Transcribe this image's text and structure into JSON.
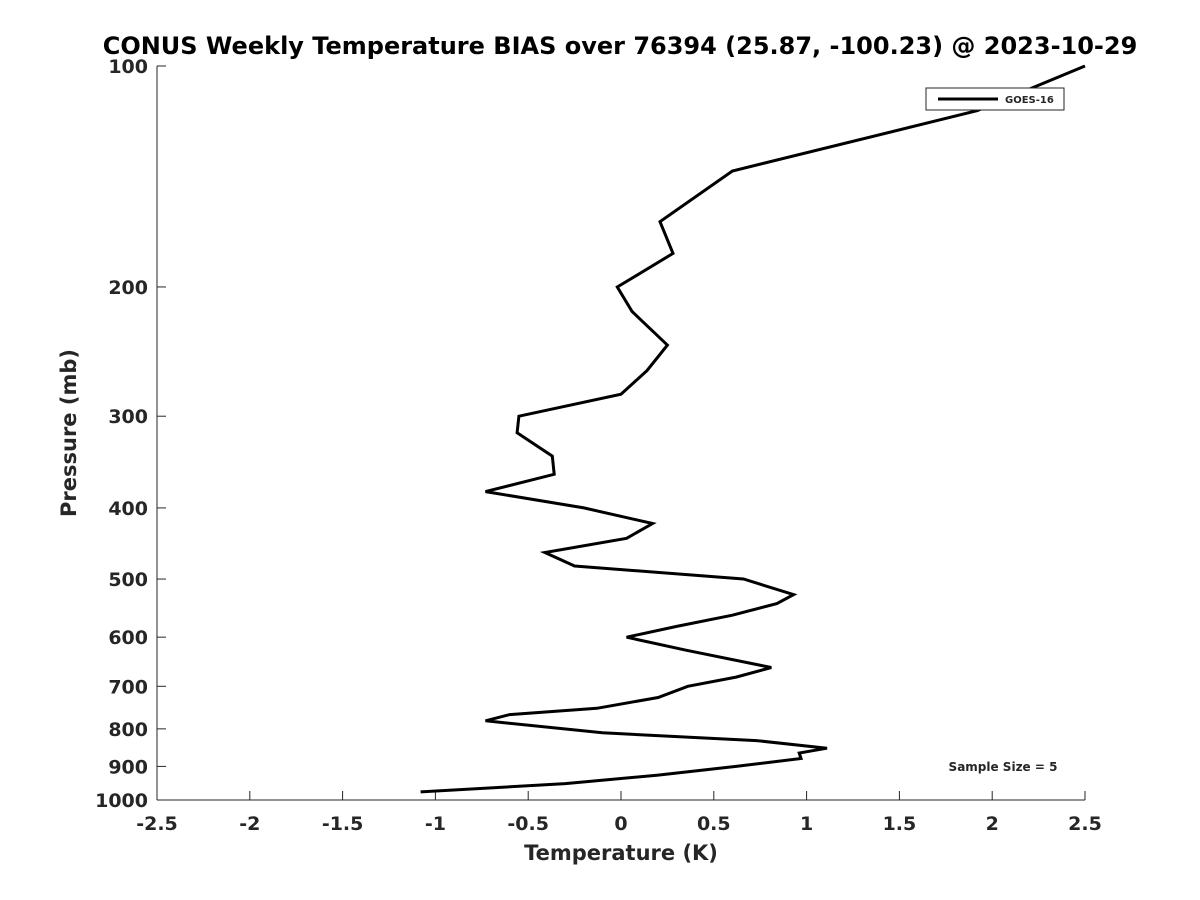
{
  "chart_data": {
    "type": "line",
    "title": "CONUS Weekly Temperature BIAS over 76394 (25.87, -100.23) @ 2023-10-29",
    "xlabel": "Temperature (K)",
    "ylabel": "Pressure (mb)",
    "xlim": [
      -2.5,
      2.5
    ],
    "ylim": [
      100,
      1000
    ],
    "y_scale": "log",
    "y_reversed": true,
    "grid": false,
    "legend_position": "top-right",
    "x_ticks": [
      -2.5,
      -2,
      -1.5,
      -1,
      -0.5,
      0,
      0.5,
      1,
      1.5,
      2,
      2.5
    ],
    "x_tick_labels": [
      "-2.5",
      "-2",
      "-1.5",
      "-1",
      "-0.5",
      "0",
      "0.5",
      "1",
      "1.5",
      "2",
      "2.5"
    ],
    "y_ticks": [
      100,
      200,
      300,
      400,
      500,
      600,
      700,
      800,
      900,
      1000
    ],
    "y_tick_labels": [
      "100",
      "200",
      "300",
      "400",
      "500",
      "600",
      "700",
      "800",
      "900",
      "1000"
    ],
    "series": [
      {
        "name": "GOES-16",
        "color": "#000000",
        "points": [
          {
            "x": 2.5,
            "y": 100
          },
          {
            "x": 1.92,
            "y": 115
          },
          {
            "x": 0.6,
            "y": 139
          },
          {
            "x": 0.21,
            "y": 163
          },
          {
            "x": 0.28,
            "y": 180
          },
          {
            "x": -0.02,
            "y": 200
          },
          {
            "x": 0.06,
            "y": 216
          },
          {
            "x": 0.25,
            "y": 240
          },
          {
            "x": 0.14,
            "y": 260
          },
          {
            "x": 0.0,
            "y": 280
          },
          {
            "x": -0.55,
            "y": 300
          },
          {
            "x": -0.56,
            "y": 316
          },
          {
            "x": -0.37,
            "y": 340
          },
          {
            "x": -0.36,
            "y": 360
          },
          {
            "x": -0.73,
            "y": 380
          },
          {
            "x": -0.2,
            "y": 400
          },
          {
            "x": 0.17,
            "y": 420
          },
          {
            "x": 0.03,
            "y": 440
          },
          {
            "x": -0.41,
            "y": 460
          },
          {
            "x": -0.25,
            "y": 480
          },
          {
            "x": 0.66,
            "y": 500
          },
          {
            "x": 0.93,
            "y": 525
          },
          {
            "x": 0.84,
            "y": 540
          },
          {
            "x": 0.6,
            "y": 560
          },
          {
            "x": 0.3,
            "y": 580
          },
          {
            "x": 0.03,
            "y": 600
          },
          {
            "x": 0.35,
            "y": 625
          },
          {
            "x": 0.81,
            "y": 660
          },
          {
            "x": 0.62,
            "y": 680
          },
          {
            "x": 0.36,
            "y": 700
          },
          {
            "x": 0.2,
            "y": 725
          },
          {
            "x": -0.13,
            "y": 750
          },
          {
            "x": -0.6,
            "y": 765
          },
          {
            "x": -0.73,
            "y": 780
          },
          {
            "x": -0.1,
            "y": 810
          },
          {
            "x": 0.73,
            "y": 830
          },
          {
            "x": 1.11,
            "y": 850
          },
          {
            "x": 0.96,
            "y": 863
          },
          {
            "x": 0.97,
            "y": 878
          },
          {
            "x": 0.62,
            "y": 900
          },
          {
            "x": 0.2,
            "y": 925
          },
          {
            "x": -0.3,
            "y": 950
          },
          {
            "x": -1.08,
            "y": 975
          }
        ]
      }
    ],
    "annotations": [
      {
        "text": "Sample Size = 5",
        "position": "bottom-right"
      }
    ]
  }
}
